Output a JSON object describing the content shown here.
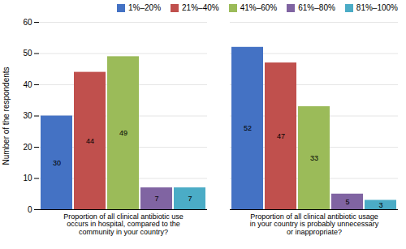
{
  "chart_data": {
    "type": "bar",
    "categories": [
      "Proportion of all clinical antibiotic use\noccurs in hospital, compared to the\ncommunity in your country?",
      "Proportion of all clinical antibiotic usage\nin your country is probably unnecessary\nor inappropriate?"
    ],
    "series": [
      {
        "name": "1%–20%",
        "color": "#4472c4",
        "values": [
          30,
          52
        ]
      },
      {
        "name": "21%–40%",
        "color": "#c0504d",
        "values": [
          44,
          47
        ]
      },
      {
        "name": "41%–60%",
        "color": "#9bbb59",
        "values": [
          49,
          33
        ]
      },
      {
        "name": "61%–80%",
        "color": "#8064a2",
        "values": [
          7,
          5
        ]
      },
      {
        "name": "81%–100%",
        "color": "#4bacc6",
        "values": [
          7,
          3
        ]
      }
    ],
    "ylabel": "Number of the respondents",
    "ylim": [
      0,
      60
    ],
    "yticks": [
      0,
      10,
      20,
      30,
      40,
      50,
      60
    ],
    "grid": true,
    "legend": "upper right",
    "data_labels": true
  }
}
